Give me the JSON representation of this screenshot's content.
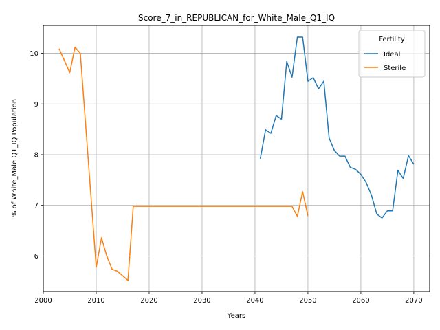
{
  "chart_data": {
    "type": "line",
    "title": "Score_7_in_REPUBLICAN_for_White_Male_Q1_IQ",
    "xlabel": "Years",
    "ylabel": "% of White_Male Q1_IQ Population",
    "xlim": [
      2000,
      2073
    ],
    "ylim": [
      5.3,
      10.55
    ],
    "xticks": [
      2000,
      2010,
      2020,
      2030,
      2040,
      2050,
      2060,
      2070
    ],
    "yticks": [
      6,
      7,
      8,
      9,
      10
    ],
    "grid": true,
    "legend": {
      "title": "Fertility",
      "position": "top-right"
    },
    "series": [
      {
        "name": "Ideal",
        "color": "#1f77b4",
        "points": [
          [
            2041,
            7.92
          ],
          [
            2042,
            8.49
          ],
          [
            2043,
            8.42
          ],
          [
            2044,
            8.77
          ],
          [
            2045,
            8.7
          ],
          [
            2046,
            9.84
          ],
          [
            2047,
            9.53
          ],
          [
            2048,
            10.32
          ],
          [
            2049,
            10.32
          ],
          [
            2050,
            9.45
          ],
          [
            2051,
            9.52
          ],
          [
            2052,
            9.3
          ],
          [
            2053,
            9.45
          ],
          [
            2054,
            8.33
          ],
          [
            2055,
            8.08
          ],
          [
            2056,
            7.97
          ],
          [
            2057,
            7.97
          ],
          [
            2058,
            7.75
          ],
          [
            2059,
            7.71
          ],
          [
            2060,
            7.61
          ],
          [
            2061,
            7.45
          ],
          [
            2062,
            7.2
          ],
          [
            2063,
            6.83
          ],
          [
            2064,
            6.75
          ],
          [
            2065,
            6.89
          ],
          [
            2066,
            6.89
          ],
          [
            2067,
            7.69
          ],
          [
            2068,
            7.53
          ],
          [
            2069,
            7.98
          ],
          [
            2070,
            7.81
          ]
        ]
      },
      {
        "name": "Sterile",
        "color": "#ff7f0e",
        "points": [
          [
            2003,
            10.09
          ],
          [
            2005,
            9.62
          ],
          [
            2006,
            10.12
          ],
          [
            2007,
            10.0
          ],
          [
            2010,
            5.78
          ],
          [
            2011,
            6.36
          ],
          [
            2012,
            6.0
          ],
          [
            2013,
            5.74
          ],
          [
            2014,
            5.7
          ],
          [
            2016,
            5.52
          ],
          [
            2017,
            6.98
          ],
          [
            2020,
            6.98
          ],
          [
            2030,
            6.98
          ],
          [
            2040,
            6.98
          ],
          [
            2047,
            6.98
          ],
          [
            2048,
            6.78
          ],
          [
            2049,
            7.27
          ],
          [
            2050,
            6.79
          ]
        ]
      }
    ]
  }
}
